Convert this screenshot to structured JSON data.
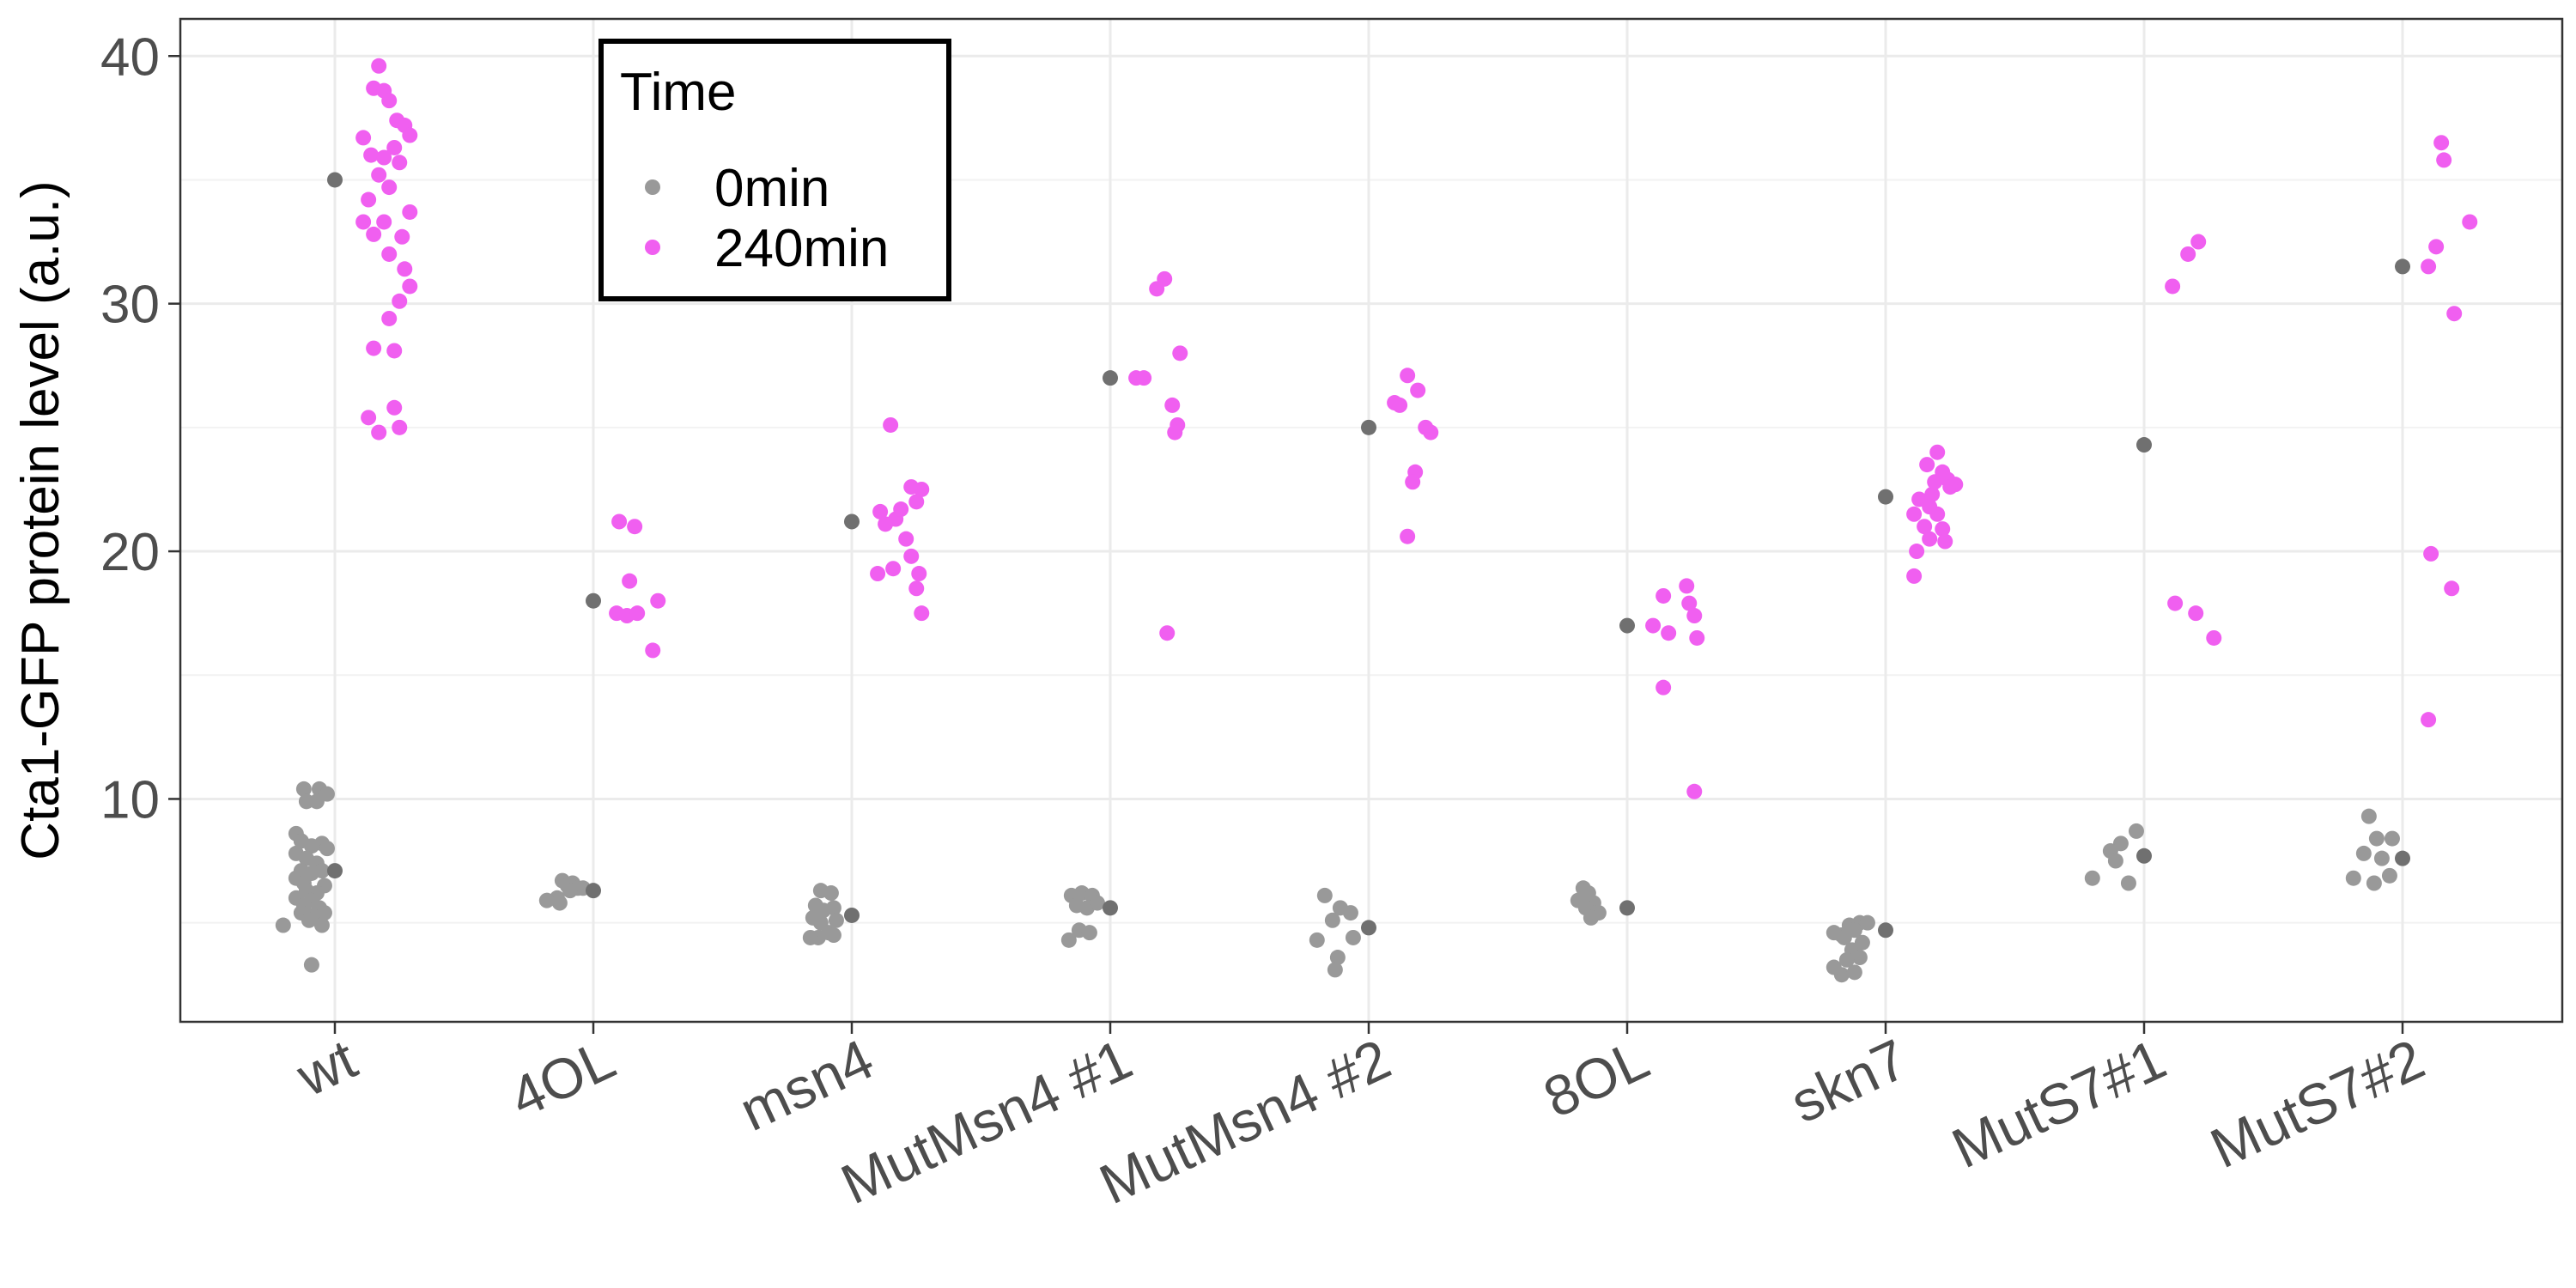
{
  "chart_data": {
    "type": "scatter",
    "ylabel": "Cta1-GFP protein level (a.u.)",
    "xlabel": "",
    "ylim": [
      1,
      41.5
    ],
    "yticks": [
      10,
      20,
      30,
      40
    ],
    "grid": true,
    "categories": [
      "wt",
      "4OL",
      "msn4",
      "MutMsn4 #1",
      "MutMsn4 #2",
      "8OL",
      "skn7",
      "MutS7#1",
      "MutS7#2"
    ],
    "legend": {
      "title": "Time",
      "position": "top-left",
      "entries": [
        {
          "label": "0min",
          "color": "#999999"
        },
        {
          "label": "240min",
          "color": "#f05ff0"
        }
      ]
    },
    "reference_color": "#707070",
    "series": [
      {
        "name": "0min",
        "color": "#999999",
        "points": [
          [
            [
              -0.12,
              10.4
            ],
            [
              -0.06,
              10.4
            ],
            [
              -0.03,
              10.2
            ],
            [
              -0.07,
              9.9
            ],
            [
              -0.11,
              9.9
            ],
            [
              -0.15,
              8.6
            ],
            [
              -0.13,
              8.3
            ],
            [
              -0.09,
              8.1
            ],
            [
              -0.05,
              8.2
            ],
            [
              -0.03,
              8.0
            ],
            [
              -0.15,
              7.8
            ],
            [
              -0.11,
              7.6
            ],
            [
              -0.07,
              7.4
            ],
            [
              -0.13,
              7.1
            ],
            [
              -0.09,
              7.0
            ],
            [
              -0.05,
              7.1
            ],
            [
              -0.15,
              6.8
            ],
            [
              -0.12,
              6.6
            ],
            [
              -0.04,
              6.5
            ],
            [
              -0.11,
              6.3
            ],
            [
              -0.07,
              6.2
            ],
            [
              -0.15,
              6.0
            ],
            [
              -0.09,
              5.9
            ],
            [
              -0.12,
              5.7
            ],
            [
              -0.06,
              5.6
            ],
            [
              -0.13,
              5.4
            ],
            [
              -0.08,
              5.3
            ],
            [
              -0.04,
              5.4
            ],
            [
              -0.1,
              5.1
            ],
            [
              -0.05,
              4.9
            ],
            [
              -0.2,
              4.9
            ],
            [
              -0.09,
              3.3
            ]
          ],
          [
            [
              -0.12,
              6.7
            ],
            [
              -0.08,
              6.6
            ],
            [
              -0.06,
              6.4
            ],
            [
              -0.1,
              6.5
            ],
            [
              -0.04,
              6.4
            ],
            [
              -0.14,
              6.0
            ],
            [
              -0.13,
              5.8
            ],
            [
              -0.09,
              6.3
            ],
            [
              -0.18,
              5.9
            ]
          ],
          [
            [
              -0.12,
              6.3
            ],
            [
              -0.08,
              6.2
            ],
            [
              -0.14,
              5.7
            ],
            [
              -0.11,
              5.5
            ],
            [
              -0.07,
              5.6
            ],
            [
              -0.15,
              5.2
            ],
            [
              -0.12,
              5.0
            ],
            [
              -0.06,
              5.1
            ],
            [
              -0.13,
              4.4
            ],
            [
              -0.09,
              4.6
            ],
            [
              -0.07,
              4.5
            ],
            [
              -0.16,
              4.4
            ]
          ],
          [
            [
              -0.15,
              6.1
            ],
            [
              -0.11,
              6.2
            ],
            [
              -0.07,
              6.1
            ],
            [
              -0.13,
              5.7
            ],
            [
              -0.09,
              5.6
            ],
            [
              -0.05,
              5.8
            ],
            [
              -0.12,
              4.7
            ],
            [
              -0.08,
              4.6
            ],
            [
              -0.16,
              4.3
            ]
          ],
          [
            [
              -0.17,
              6.1
            ],
            [
              -0.11,
              5.6
            ],
            [
              -0.07,
              5.4
            ],
            [
              -0.14,
              5.1
            ],
            [
              -0.2,
              4.3
            ],
            [
              -0.12,
              3.6
            ],
            [
              -0.06,
              4.4
            ],
            [
              -0.13,
              3.1
            ]
          ],
          [
            [
              -0.17,
              6.4
            ],
            [
              -0.15,
              6.2
            ],
            [
              -0.13,
              5.8
            ],
            [
              -0.16,
              5.6
            ],
            [
              -0.11,
              5.4
            ],
            [
              -0.14,
              5.2
            ],
            [
              -0.19,
              5.9
            ]
          ],
          [
            [
              -0.2,
              4.6
            ],
            [
              -0.17,
              4.5
            ],
            [
              -0.14,
              4.9
            ],
            [
              -0.1,
              5.0
            ],
            [
              -0.07,
              5.0
            ],
            [
              -0.12,
              4.7
            ],
            [
              -0.16,
              4.4
            ],
            [
              -0.13,
              3.9
            ],
            [
              -0.1,
              3.6
            ],
            [
              -0.15,
              3.5
            ],
            [
              -0.17,
              2.9
            ],
            [
              -0.12,
              3.0
            ],
            [
              -0.2,
              3.2
            ],
            [
              -0.09,
              4.2
            ]
          ],
          [
            [
              -0.03,
              8.7
            ],
            [
              -0.09,
              8.2
            ],
            [
              -0.13,
              7.9
            ],
            [
              -0.11,
              7.5
            ],
            [
              -0.2,
              6.8
            ],
            [
              -0.06,
              6.6
            ]
          ],
          [
            [
              -0.13,
              9.3
            ],
            [
              -0.1,
              8.4
            ],
            [
              -0.04,
              8.4
            ],
            [
              -0.08,
              7.6
            ],
            [
              -0.15,
              7.8
            ],
            [
              -0.19,
              6.8
            ],
            [
              -0.11,
              6.6
            ],
            [
              -0.05,
              6.9
            ]
          ]
        ]
      },
      {
        "name": "240min",
        "color": "#f05ff0",
        "points": [
          [
            [
              0.17,
              39.6
            ],
            [
              0.15,
              38.7
            ],
            [
              0.19,
              38.6
            ],
            [
              0.21,
              38.2
            ],
            [
              0.24,
              37.4
            ],
            [
              0.27,
              37.2
            ],
            [
              0.29,
              36.8
            ],
            [
              0.11,
              36.7
            ],
            [
              0.23,
              36.3
            ],
            [
              0.14,
              36.0
            ],
            [
              0.19,
              35.9
            ],
            [
              0.25,
              35.7
            ],
            [
              0.17,
              35.2
            ],
            [
              0.21,
              34.7
            ],
            [
              0.13,
              34.2
            ],
            [
              0.29,
              33.7
            ],
            [
              0.19,
              33.3
            ],
            [
              0.11,
              33.3
            ],
            [
              0.15,
              32.8
            ],
            [
              0.26,
              32.7
            ],
            [
              0.21,
              32.0
            ],
            [
              0.27,
              31.4
            ],
            [
              0.29,
              30.7
            ],
            [
              0.25,
              30.1
            ],
            [
              0.21,
              29.4
            ],
            [
              0.15,
              28.2
            ],
            [
              0.23,
              28.1
            ],
            [
              0.23,
              25.8
            ],
            [
              0.13,
              25.4
            ],
            [
              0.25,
              25.0
            ],
            [
              0.17,
              24.8
            ]
          ],
          [
            [
              0.1,
              21.2
            ],
            [
              0.16,
              21.0
            ],
            [
              0.14,
              18.8
            ],
            [
              0.25,
              18.0
            ],
            [
              0.09,
              17.5
            ],
            [
              0.13,
              17.4
            ],
            [
              0.17,
              17.5
            ],
            [
              0.23,
              16.0
            ]
          ],
          [
            [
              0.15,
              25.1
            ],
            [
              0.11,
              21.6
            ],
            [
              0.17,
              21.3
            ],
            [
              0.23,
              22.6
            ],
            [
              0.27,
              22.5
            ],
            [
              0.25,
              22.0
            ],
            [
              0.19,
              21.7
            ],
            [
              0.13,
              21.1
            ],
            [
              0.21,
              20.5
            ],
            [
              0.23,
              19.8
            ],
            [
              0.16,
              19.3
            ],
            [
              0.1,
              19.1
            ],
            [
              0.26,
              19.1
            ],
            [
              0.25,
              18.5
            ],
            [
              0.27,
              17.5
            ]
          ],
          [
            [
              0.21,
              31.0
            ],
            [
              0.18,
              30.6
            ],
            [
              0.27,
              28.0
            ],
            [
              0.1,
              27.0
            ],
            [
              0.13,
              27.0
            ],
            [
              0.24,
              25.9
            ],
            [
              0.26,
              25.1
            ],
            [
              0.25,
              24.8
            ],
            [
              0.22,
              16.7
            ]
          ],
          [
            [
              0.15,
              27.1
            ],
            [
              0.1,
              26.0
            ],
            [
              0.12,
              25.9
            ],
            [
              0.19,
              26.5
            ],
            [
              0.22,
              25.0
            ],
            [
              0.24,
              24.8
            ],
            [
              0.18,
              23.2
            ],
            [
              0.17,
              22.8
            ],
            [
              0.15,
              20.6
            ]
          ],
          [
            [
              0.14,
              18.2
            ],
            [
              0.1,
              17.0
            ],
            [
              0.23,
              18.6
            ],
            [
              0.24,
              17.9
            ],
            [
              0.26,
              17.4
            ],
            [
              0.16,
              16.7
            ],
            [
              0.27,
              16.5
            ],
            [
              0.14,
              14.5
            ],
            [
              0.26,
              10.3
            ]
          ],
          [
            [
              0.2,
              24.0
            ],
            [
              0.16,
              23.5
            ],
            [
              0.22,
              23.2
            ],
            [
              0.24,
              22.9
            ],
            [
              0.13,
              22.1
            ],
            [
              0.18,
              22.3
            ],
            [
              0.27,
              22.7
            ],
            [
              0.17,
              21.8
            ],
            [
              0.2,
              21.5
            ],
            [
              0.11,
              21.5
            ],
            [
              0.15,
              21.0
            ],
            [
              0.22,
              20.9
            ],
            [
              0.17,
              20.5
            ],
            [
              0.23,
              20.4
            ],
            [
              0.12,
              20.0
            ],
            [
              0.11,
              19.0
            ],
            [
              0.25,
              22.6
            ],
            [
              0.19,
              22.8
            ]
          ],
          [
            [
              0.21,
              32.5
            ],
            [
              0.17,
              32.0
            ],
            [
              0.11,
              30.7
            ],
            [
              0.12,
              17.9
            ],
            [
              0.2,
              17.5
            ],
            [
              0.27,
              16.5
            ]
          ],
          [
            [
              0.15,
              36.5
            ],
            [
              0.16,
              35.8
            ],
            [
              0.13,
              32.3
            ],
            [
              0.1,
              31.5
            ],
            [
              0.26,
              33.3
            ],
            [
              0.2,
              29.6
            ],
            [
              0.11,
              19.9
            ],
            [
              0.19,
              18.5
            ],
            [
              0.1,
              13.2
            ]
          ]
        ]
      }
    ],
    "reference": {
      "name": "0min",
      "offset": 0,
      "values": [
        35.0,
        18.0,
        21.2,
        27.0,
        25.0,
        17.0,
        22.2,
        24.3,
        31.5
      ],
      "lower_values": [
        7.1,
        6.3,
        5.3,
        5.6,
        4.8,
        5.6,
        4.7,
        7.7,
        7.6
      ]
    }
  }
}
